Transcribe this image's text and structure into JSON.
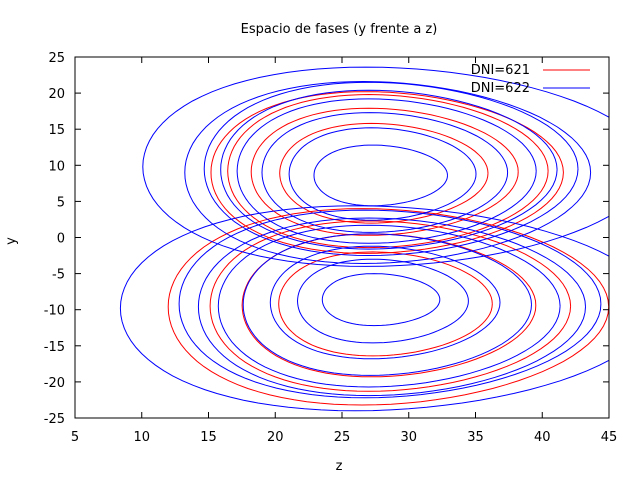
{
  "chart_data": {
    "type": "line",
    "title": "Espacio de fases (y frente a z)",
    "xlabel": "z",
    "ylabel": "y",
    "xlim": [
      5,
      45
    ],
    "ylim": [
      -25,
      25
    ],
    "xticks": [
      "5",
      "10",
      "15",
      "20",
      "25",
      "30",
      "35",
      "40",
      "45"
    ],
    "yticks": [
      "-25",
      "-20",
      "-15",
      "-10",
      "-5",
      "0",
      "5",
      "10",
      "15",
      "20",
      "25"
    ],
    "grid": false,
    "legend_position": "top-right",
    "series": [
      {
        "name": "DNI=621",
        "color": "#ff0000",
        "loops": [
          {
            "center": [
              27.0,
              9.2
            ],
            "rz": 12.0,
            "ry": 10.6
          },
          {
            "center": [
              27.0,
              9.1
            ],
            "rz": 10.0,
            "ry": 8.8
          },
          {
            "center": [
              26.8,
              9.0
            ],
            "rz": 13.2,
            "ry": 11.2
          },
          {
            "center": [
              27.2,
              8.9
            ],
            "rz": 7.8,
            "ry": 6.9
          },
          {
            "center": [
              27.0,
              -9.5
            ],
            "rz": 13.5,
            "ry": 11.8
          },
          {
            "center": [
              26.5,
              -9.6
            ],
            "rz": 16.5,
            "ry": 13.6
          },
          {
            "center": [
              27.2,
              -9.4
            ],
            "rz": 11.0,
            "ry": 9.9
          },
          {
            "center": [
              27.3,
              -9.2
            ],
            "rz": 8.0,
            "ry": 7.2
          }
        ]
      },
      {
        "name": "DNI=622",
        "color": "#0000ff",
        "loops": [
          {
            "center": [
              26.8,
              9.8
            ],
            "rz": 19.0,
            "ry": 13.8
          },
          {
            "center": [
              27.0,
              9.5
            ],
            "rz": 14.0,
            "ry": 12.0
          },
          {
            "center": [
              27.0,
              9.4
            ],
            "rz": 12.6,
            "ry": 11.0
          },
          {
            "center": [
              27.0,
              9.2
            ],
            "rz": 11.2,
            "ry": 10.0
          },
          {
            "center": [
              27.1,
              9.0
            ],
            "rz": 9.2,
            "ry": 8.3
          },
          {
            "center": [
              27.2,
              8.8
            ],
            "rz": 7.0,
            "ry": 6.4
          },
          {
            "center": [
              27.3,
              8.6
            ],
            "rz": 5.0,
            "ry": 4.2
          },
          {
            "center": [
              26.6,
              9.0
            ],
            "rz": 15.2,
            "ry": 12.6
          },
          {
            "center": [
              26.0,
              -9.8
            ],
            "rz": 20.0,
            "ry": 14.2
          },
          {
            "center": [
              27.0,
              -9.6
            ],
            "rz": 14.5,
            "ry": 12.3
          },
          {
            "center": [
              27.0,
              -9.5
            ],
            "rz": 12.8,
            "ry": 11.2
          },
          {
            "center": [
              27.1,
              -9.3
            ],
            "rz": 10.8,
            "ry": 9.8
          },
          {
            "center": [
              27.2,
              -9.0
            ],
            "rz": 8.6,
            "ry": 7.8
          },
          {
            "center": [
              27.3,
              -8.8
            ],
            "rz": 6.4,
            "ry": 5.8
          },
          {
            "center": [
              27.4,
              -8.6
            ],
            "rz": 4.4,
            "ry": 3.6
          },
          {
            "center": [
              26.7,
              -9.2
            ],
            "rz": 15.8,
            "ry": 13.0
          }
        ]
      }
    ]
  }
}
